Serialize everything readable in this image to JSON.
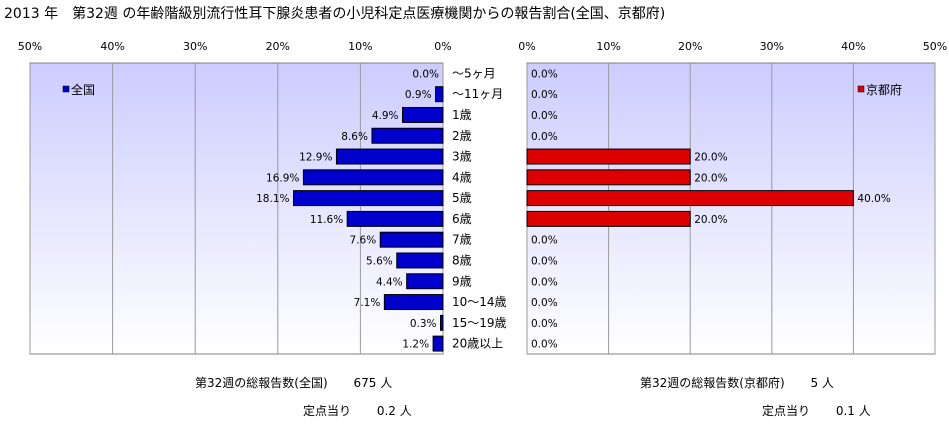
{
  "title": "2013 年　第32週 の年齢階級別流行性耳下腺炎患者の小児科定点医療機関からの報告割合(全国、京都府)",
  "chart_data": [
    {
      "type": "bar",
      "orientation": "horizontal",
      "direction": "right-to-left",
      "legend": "全国",
      "legend_position": "top-left",
      "color": "#0000cc",
      "xlim": [
        0,
        50
      ],
      "ticks": [
        "50%",
        "40%",
        "30%",
        "20%",
        "10%",
        "0%"
      ],
      "tick_values": [
        50,
        40,
        30,
        20,
        10,
        0
      ],
      "categories": [
        "～5ヶ月",
        "～11ヶ月",
        "1歳",
        "2歳",
        "3歳",
        "4歳",
        "5歳",
        "6歳",
        "7歳",
        "8歳",
        "9歳",
        "10～14歳",
        "15～19歳",
        "20歳以上"
      ],
      "values": [
        0.0,
        0.9,
        4.9,
        8.6,
        12.9,
        16.9,
        18.1,
        11.6,
        7.6,
        5.6,
        4.4,
        7.1,
        0.3,
        1.2
      ],
      "labels": [
        "0.0%",
        "0.9%",
        "4.9%",
        "8.6%",
        "12.9%",
        "16.9%",
        "18.1%",
        "11.6%",
        "7.6%",
        "5.6%",
        "4.4%",
        "7.1%",
        "0.3%",
        "1.2%"
      ],
      "grid": true
    },
    {
      "type": "bar",
      "orientation": "horizontal",
      "direction": "left-to-right",
      "legend": "京都府",
      "legend_position": "top-right",
      "color": "#dd0000",
      "xlim": [
        0,
        50
      ],
      "ticks": [
        "0%",
        "10%",
        "20%",
        "30%",
        "40%",
        "50%"
      ],
      "tick_values": [
        0,
        10,
        20,
        30,
        40,
        50
      ],
      "categories": [
        "～5ヶ月",
        "～11ヶ月",
        "1歳",
        "2歳",
        "3歳",
        "4歳",
        "5歳",
        "6歳",
        "7歳",
        "8歳",
        "9歳",
        "10～14歳",
        "15～19歳",
        "20歳以上"
      ],
      "values": [
        0.0,
        0.0,
        0.0,
        0.0,
        20.0,
        20.0,
        40.0,
        20.0,
        0.0,
        0.0,
        0.0,
        0.0,
        0.0,
        0.0
      ],
      "labels": [
        "0.0%",
        "0.0%",
        "0.0%",
        "0.0%",
        "20.0%",
        "20.0%",
        "40.0%",
        "20.0%",
        "0.0%",
        "0.0%",
        "0.0%",
        "0.0%",
        "0.0%",
        "0.0%"
      ],
      "grid": true
    }
  ],
  "footer": {
    "left": {
      "total_label": "第32週の総報告数(全国)",
      "total_value": "675 人",
      "per_label": "定点当り",
      "per_value": "0.2 人"
    },
    "right": {
      "total_label": "第32週の総報告数(京都府)",
      "total_value": "5 人",
      "per_label": "定点当り",
      "per_value": "0.1 人"
    }
  }
}
